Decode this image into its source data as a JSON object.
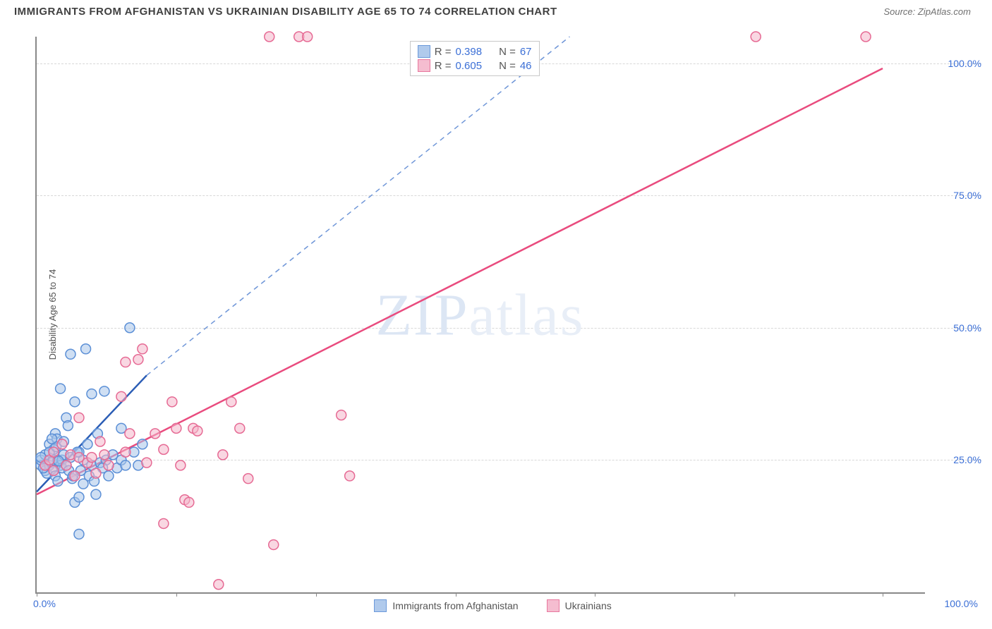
{
  "header": {
    "title": "IMMIGRANTS FROM AFGHANISTAN VS UKRAINIAN DISABILITY AGE 65 TO 74 CORRELATION CHART",
    "source_prefix": "Source: ",
    "source": "ZipAtlas.com"
  },
  "watermark": {
    "part1": "ZIP",
    "part2": "atlas"
  },
  "chart": {
    "type": "scatter",
    "y_label": "Disability Age 65 to 74",
    "xlim": [
      0,
      105
    ],
    "ylim": [
      0,
      105
    ],
    "x_ticks": [
      0,
      16.5,
      33,
      49.5,
      66,
      82.5,
      100
    ],
    "x_tick_labels_left": "0.0%",
    "x_tick_labels_right": "100.0%",
    "y_grid": [
      25,
      50,
      75,
      100
    ],
    "y_tick_labels": [
      "25.0%",
      "50.0%",
      "75.0%",
      "100.0%"
    ],
    "background_color": "#ffffff",
    "grid_color": "#d8d8d8",
    "axis_color": "#888888",
    "tick_label_color": "#3b6fd6",
    "marker_radius": 7,
    "marker_stroke_width": 1.5,
    "series": [
      {
        "name": "Immigrants from Afghanistan",
        "R": "0.398",
        "N": "67",
        "fill": "#a8c5ea",
        "stroke": "#5b8fd6",
        "fill_opacity": 0.55,
        "line_color_solid": "#2b5db5",
        "line_color_dash": "#6f96d8",
        "trend_solid": {
          "x1": 0,
          "y1": 19,
          "x2": 13,
          "y2": 41
        },
        "trend_dash": {
          "x1": 13,
          "y1": 41,
          "x2": 63,
          "y2": 105
        },
        "points": [
          [
            0.5,
            24
          ],
          [
            0.5,
            25
          ],
          [
            1,
            23
          ],
          [
            1,
            26
          ],
          [
            1.2,
            22.5
          ],
          [
            1.5,
            24
          ],
          [
            1.5,
            28
          ],
          [
            1.8,
            24.5
          ],
          [
            2,
            23
          ],
          [
            2,
            25
          ],
          [
            2,
            27
          ],
          [
            2.2,
            22
          ],
          [
            2.2,
            30
          ],
          [
            2.4,
            29
          ],
          [
            2.5,
            21
          ],
          [
            2.5,
            25
          ],
          [
            2.8,
            24
          ],
          [
            2.8,
            38.5
          ],
          [
            3,
            25
          ],
          [
            3,
            23.5
          ],
          [
            3.2,
            26
          ],
          [
            3.5,
            33
          ],
          [
            3.5,
            24
          ],
          [
            3.8,
            23
          ],
          [
            4,
            25.5
          ],
          [
            4,
            45
          ],
          [
            4.2,
            21.5
          ],
          [
            4.5,
            36
          ],
          [
            4.5,
            17
          ],
          [
            5,
            26.5
          ],
          [
            5,
            18
          ],
          [
            5,
            11
          ],
          [
            5.2,
            23
          ],
          [
            5.5,
            25
          ],
          [
            5.5,
            20.5
          ],
          [
            5.8,
            46
          ],
          [
            6,
            28
          ],
          [
            6.2,
            22
          ],
          [
            6.5,
            37.5
          ],
          [
            6.5,
            24
          ],
          [
            7,
            18.5
          ],
          [
            7.2,
            30
          ],
          [
            7.5,
            24.5
          ],
          [
            8,
            38
          ],
          [
            8.2,
            25
          ],
          [
            8.5,
            22
          ],
          [
            9,
            26
          ],
          [
            9.5,
            23.5
          ],
          [
            10,
            25
          ],
          [
            10,
            31
          ],
          [
            10.5,
            24
          ],
          [
            11,
            50
          ],
          [
            11.5,
            26.5
          ],
          [
            12,
            24
          ],
          [
            12.5,
            28
          ],
          [
            1.5,
            26.5
          ],
          [
            2.3,
            27.5
          ],
          [
            3.2,
            28.5
          ],
          [
            0.8,
            23.5
          ],
          [
            1.8,
            29
          ],
          [
            4.3,
            22
          ],
          [
            6.8,
            21
          ],
          [
            0.5,
            25.5
          ],
          [
            7.8,
            23.5
          ],
          [
            3.7,
            31.5
          ],
          [
            4.8,
            26.5
          ],
          [
            2.6,
            24.8
          ]
        ]
      },
      {
        "name": "Ukrainians",
        "R": "0.605",
        "N": "46",
        "fill": "#f4b6cb",
        "stroke": "#e66a94",
        "fill_opacity": 0.55,
        "line_color_solid": "#e94b7e",
        "trend_solid": {
          "x1": 0,
          "y1": 18.5,
          "x2": 100,
          "y2": 99
        },
        "points": [
          [
            1,
            24
          ],
          [
            1.5,
            25
          ],
          [
            2,
            23
          ],
          [
            2,
            26.5
          ],
          [
            3,
            28
          ],
          [
            3.5,
            24
          ],
          [
            4,
            26
          ],
          [
            4.5,
            22
          ],
          [
            5,
            25.5
          ],
          [
            5,
            33
          ],
          [
            6,
            24.5
          ],
          [
            7,
            22.5
          ],
          [
            7.5,
            28.5
          ],
          [
            8,
            26
          ],
          [
            8.5,
            24
          ],
          [
            10,
            37
          ],
          [
            10.5,
            43.5
          ],
          [
            11,
            30
          ],
          [
            12,
            44
          ],
          [
            12.5,
            46
          ],
          [
            13,
            24.5
          ],
          [
            14,
            30
          ],
          [
            15,
            27
          ],
          [
            15,
            13
          ],
          [
            16,
            36
          ],
          [
            16.5,
            31
          ],
          [
            17,
            24
          ],
          [
            17.5,
            17.5
          ],
          [
            18,
            17
          ],
          [
            18.5,
            31
          ],
          [
            19,
            30.5
          ],
          [
            21.5,
            1.5
          ],
          [
            22,
            26
          ],
          [
            23,
            36
          ],
          [
            24,
            31
          ],
          [
            25,
            21.5
          ],
          [
            28,
            9
          ],
          [
            27.5,
            105
          ],
          [
            31,
            105
          ],
          [
            32,
            105
          ],
          [
            37,
            22
          ],
          [
            36,
            33.5
          ],
          [
            85,
            105
          ],
          [
            98,
            105
          ],
          [
            10.5,
            26.5
          ],
          [
            6.5,
            25.5
          ]
        ]
      }
    ],
    "legend_bottom": [
      {
        "label": "Immigrants from Afghanistan",
        "fill": "#a8c5ea",
        "stroke": "#5b8fd6"
      },
      {
        "label": "Ukrainians",
        "fill": "#f4b6cb",
        "stroke": "#e66a94"
      }
    ]
  }
}
